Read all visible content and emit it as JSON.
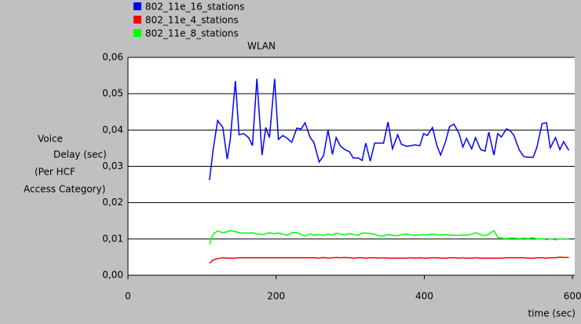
{
  "chart_data": {
    "type": "line",
    "title": "WLAN",
    "y_label": [
      "Voice",
      "Delay (sec)",
      "(Per HCF",
      "Access Category)"
    ],
    "x_label": "time (sec)",
    "legend": "top-left",
    "grid": true,
    "xlim": [
      0,
      603
    ],
    "xticks": [
      0,
      200,
      400,
      600
    ],
    "ylim": [
      0,
      0.06
    ],
    "yticks": [
      {
        "value": 0,
        "label": "0,00"
      },
      {
        "value": 0.01,
        "label": "0,01"
      },
      {
        "value": 0.02,
        "label": "0,02"
      },
      {
        "value": 0.03,
        "label": "0,03"
      },
      {
        "value": 0.04,
        "label": "0,04"
      },
      {
        "value": 0.05,
        "label": "0,05"
      },
      {
        "value": 0.06,
        "label": "0,06"
      }
    ],
    "x": [
      110,
      115,
      121,
      128,
      134,
      138,
      145,
      150,
      156,
      163,
      168,
      174,
      181,
      186,
      191,
      198,
      203,
      209,
      215,
      221,
      228,
      234,
      239,
      246,
      251,
      258,
      264,
      270,
      276,
      281,
      287,
      293,
      299,
      304,
      311,
      316,
      321,
      327,
      333,
      338,
      345,
      351,
      357,
      364,
      369,
      376,
      382,
      387,
      394,
      399,
      404,
      411,
      417,
      422,
      429,
      434,
      440,
      447,
      452,
      457,
      464,
      469,
      476,
      482,
      487,
      494,
      499,
      504,
      511,
      516,
      521,
      528,
      534,
      540,
      547,
      552,
      559,
      565,
      570,
      577,
      583,
      588,
      595
    ],
    "series": [
      {
        "name": "802_11e_16_stations",
        "color": "#0000ff",
        "values": [
          0.0262,
          0.0346,
          0.0426,
          0.0407,
          0.032,
          0.0372,
          0.0535,
          0.0387,
          0.039,
          0.0379,
          0.0357,
          0.0541,
          0.0331,
          0.0407,
          0.0379,
          0.0541,
          0.0374,
          0.0385,
          0.0377,
          0.0366,
          0.0405,
          0.0403,
          0.042,
          0.0379,
          0.0366,
          0.0312,
          0.0329,
          0.04,
          0.0333,
          0.0379,
          0.0355,
          0.0346,
          0.034,
          0.0323,
          0.0323,
          0.0316,
          0.0364,
          0.0314,
          0.0364,
          0.0364,
          0.0364,
          0.0422,
          0.0348,
          0.0387,
          0.0361,
          0.0355,
          0.0357,
          0.0359,
          0.0357,
          0.039,
          0.0385,
          0.0407,
          0.0357,
          0.0331,
          0.037,
          0.0409,
          0.0416,
          0.039,
          0.0353,
          0.0377,
          0.0348,
          0.0379,
          0.0346,
          0.0342,
          0.0394,
          0.0331,
          0.039,
          0.0381,
          0.0403,
          0.0398,
          0.0385,
          0.0346,
          0.0327,
          0.0325,
          0.0325,
          0.0353,
          0.0418,
          0.042,
          0.0351,
          0.0379,
          0.0346,
          0.0368,
          0.0344
        ]
      },
      {
        "name": "802_11e_4_stations",
        "color": "#ff0000",
        "values": [
          0.0033,
          0.0042,
          0.0046,
          0.0048,
          0.0047,
          0.0047,
          0.0047,
          0.0048,
          0.0048,
          0.0048,
          0.0048,
          0.0048,
          0.0048,
          0.0048,
          0.0048,
          0.0048,
          0.0048,
          0.0048,
          0.0048,
          0.0048,
          0.0048,
          0.0048,
          0.0048,
          0.0048,
          0.0048,
          0.0047,
          0.0049,
          0.0047,
          0.0048,
          0.0049,
          0.0048,
          0.0049,
          0.0048,
          0.0047,
          0.0048,
          0.0048,
          0.0047,
          0.0048,
          0.0048,
          0.0047,
          0.0048,
          0.0047,
          0.0047,
          0.0047,
          0.0047,
          0.0047,
          0.0048,
          0.0047,
          0.0048,
          0.0047,
          0.0047,
          0.0048,
          0.0048,
          0.0047,
          0.0047,
          0.0048,
          0.0048,
          0.0047,
          0.0048,
          0.0047,
          0.0047,
          0.0048,
          0.0047,
          0.0047,
          0.0047,
          0.0047,
          0.0047,
          0.0047,
          0.0048,
          0.0048,
          0.0048,
          0.0048,
          0.0048,
          0.0047,
          0.0047,
          0.0048,
          0.0048,
          0.0047,
          0.0048,
          0.0048,
          0.005,
          0.0049,
          0.0049
        ]
      },
      {
        "name": "802_11e_8_stations",
        "color": "#00ff00",
        "values": [
          0.0085,
          0.0113,
          0.0122,
          0.0117,
          0.012,
          0.0123,
          0.012,
          0.0117,
          0.0116,
          0.0116,
          0.0117,
          0.0114,
          0.0112,
          0.0114,
          0.0117,
          0.0114,
          0.0117,
          0.0113,
          0.011,
          0.0117,
          0.0118,
          0.0112,
          0.0108,
          0.0114,
          0.011,
          0.0112,
          0.011,
          0.0113,
          0.0111,
          0.0116,
          0.0113,
          0.0111,
          0.0115,
          0.0112,
          0.011,
          0.0116,
          0.0116,
          0.0115,
          0.0113,
          0.0109,
          0.0108,
          0.0112,
          0.011,
          0.0109,
          0.0112,
          0.0113,
          0.0111,
          0.011,
          0.0111,
          0.0112,
          0.0111,
          0.0113,
          0.0112,
          0.0111,
          0.0112,
          0.0111,
          0.011,
          0.011,
          0.0111,
          0.011,
          0.0113,
          0.0117,
          0.0112,
          0.0109,
          0.0113,
          0.0123,
          0.0104,
          0.0102,
          0.0101,
          0.0102,
          0.0102,
          0.0101,
          0.0102,
          0.0101,
          0.0103,
          0.01,
          0.0101,
          0.0098,
          0.01,
          0.0098,
          0.0101,
          0.0099,
          0.01
        ]
      }
    ]
  }
}
